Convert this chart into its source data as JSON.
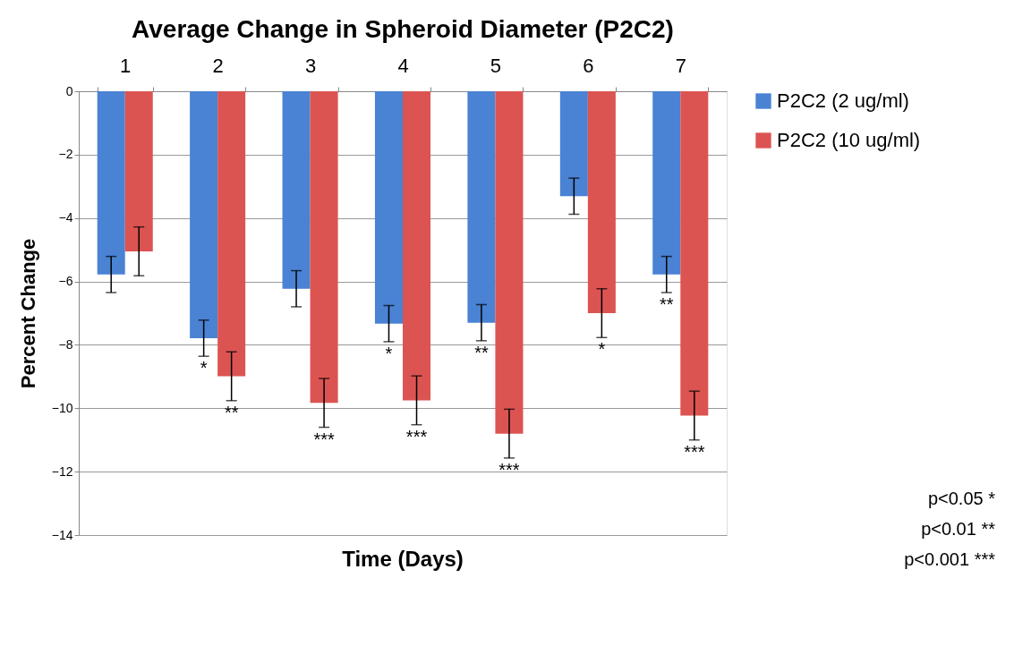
{
  "chart_data": {
    "type": "bar",
    "title": "Average Change in Spheroid Diameter (P2C2)",
    "xlabel": "Time (Days)",
    "ylabel": "Percent Change",
    "categories": [
      "1",
      "2",
      "3",
      "4",
      "5",
      "6",
      "7"
    ],
    "series": [
      {
        "name": "P2C2 (2 ug/ml)",
        "color": "#4a82d4",
        "values": [
          -5.78,
          -7.79,
          -6.23,
          -7.33,
          -7.3,
          -3.31,
          -5.78
        ],
        "errors": [
          0.57,
          0.57,
          0.57,
          0.57,
          0.57,
          0.57,
          0.57
        ]
      },
      {
        "name": "P2C2 (10 ug/ml)",
        "color": "#dc5452",
        "values": [
          -5.05,
          -8.99,
          -9.83,
          -9.75,
          -10.8,
          -7.0,
          -10.23
        ],
        "errors": [
          0.77,
          0.77,
          0.77,
          0.77,
          0.77,
          0.77,
          0.77
        ]
      }
    ],
    "ylim": [
      -14,
      0
    ],
    "yticks": [
      0,
      -2,
      -4,
      -6,
      -8,
      -10,
      -12,
      -14
    ],
    "grid": "y",
    "legend": "right",
    "annotations": [
      {
        "text": "*",
        "x": "2",
        "y": -7.79
      },
      {
        "text": "**",
        "x": "2",
        "y": -8.99
      },
      {
        "text": "***",
        "x": "3",
        "y": -9.83
      },
      {
        "text": "*",
        "x": "4",
        "y": -7.33
      },
      {
        "text": "***",
        "x": "4",
        "y": -9.75
      },
      {
        "text": "**",
        "x": "5",
        "y": -7.3
      },
      {
        "text": "***",
        "x": "5",
        "y": -10.8
      },
      {
        "text": "*",
        "x": "6",
        "y": -7.0
      },
      {
        "text": "**",
        "x": "7",
        "y": -5.78
      },
      {
        "text": "***",
        "x": "7",
        "y": -10.23
      },
      "p<0.05 *",
      "p<0.01 **",
      "p<0.001 ***"
    ]
  }
}
